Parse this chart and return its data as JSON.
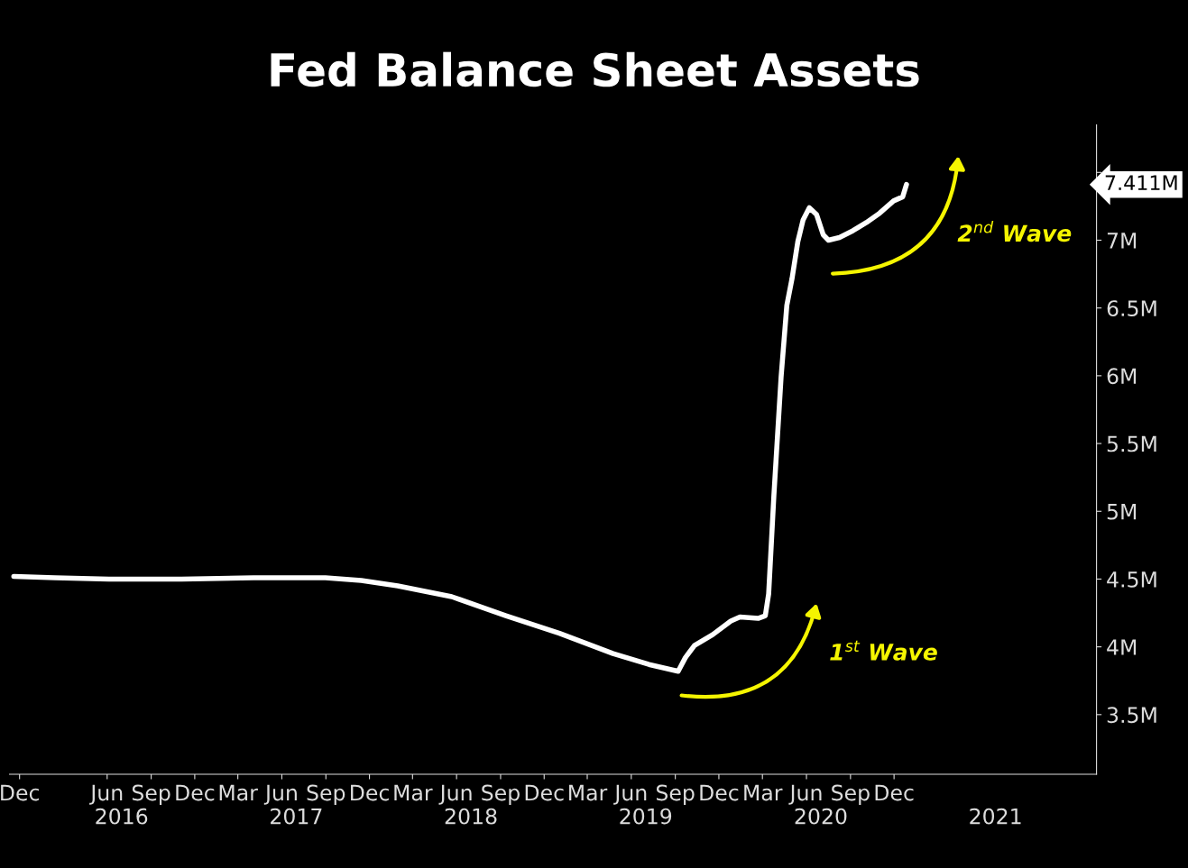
{
  "chart_data": {
    "type": "line",
    "title": "Fed Balance Sheet Assets",
    "x": [
      "2015-11-19",
      "2016-02-13",
      "2016-06-05",
      "2016-11-03",
      "2017-04-03",
      "2017-08-31",
      "2017-11-14",
      "2018-01-29",
      "2018-05-22",
      "2018-09-12",
      "2019-01-02",
      "2019-04-24",
      "2019-07-08",
      "2019-09-07",
      "2019-09-22",
      "2019-10-11",
      "2019-11-18",
      "2019-12-26",
      "2020-01-14",
      "2020-02-21",
      "2020-03-07",
      "2020-03-14",
      "2020-03-25",
      "2020-04-09",
      "2020-04-21",
      "2020-05-02",
      "2020-05-14",
      "2020-05-25",
      "2020-06-07",
      "2020-06-22",
      "2020-07-06",
      "2020-07-17",
      "2020-08-09",
      "2020-09-06",
      "2020-10-04",
      "2020-11-01",
      "2020-11-30",
      "2020-12-19",
      "2020-12-27"
    ],
    "series": [
      {
        "color": "#ffffff",
        "values": [
          4.52,
          4.51,
          4.5,
          4.5,
          4.51,
          4.51,
          4.49,
          4.45,
          4.37,
          4.23,
          4.1,
          3.95,
          3.87,
          3.82,
          3.92,
          4.01,
          4.09,
          4.19,
          4.22,
          4.21,
          4.23,
          4.39,
          5.12,
          5.99,
          6.52,
          6.72,
          6.99,
          7.15,
          7.24,
          7.19,
          7.04,
          7.0,
          7.02,
          7.07,
          7.13,
          7.2,
          7.29,
          7.32,
          7.411
        ]
      }
    ],
    "xlim": [
      "2015-11-10",
      "2022-01-28"
    ],
    "xticks": [
      {
        "value": "2015-12-01",
        "label": "Dec"
      },
      {
        "value": "2016-06-01",
        "label": "Jun"
      },
      {
        "value": "2016-09-01",
        "label": "Sep"
      },
      {
        "value": "2016-12-01",
        "label": "Dec"
      },
      {
        "value": "2017-03-01",
        "label": "Mar"
      },
      {
        "value": "2017-06-01",
        "label": "Jun"
      },
      {
        "value": "2017-09-01",
        "label": "Sep"
      },
      {
        "value": "2017-12-01",
        "label": "Dec"
      },
      {
        "value": "2018-03-01",
        "label": "Mar"
      },
      {
        "value": "2018-06-01",
        "label": "Jun"
      },
      {
        "value": "2018-09-01",
        "label": "Sep"
      },
      {
        "value": "2018-12-01",
        "label": "Dec"
      },
      {
        "value": "2019-03-01",
        "label": "Mar"
      },
      {
        "value": "2019-06-01",
        "label": "Jun"
      },
      {
        "value": "2019-09-01",
        "label": "Sep"
      },
      {
        "value": "2019-12-01",
        "label": "Dec"
      },
      {
        "value": "2020-03-01",
        "label": "Mar"
      },
      {
        "value": "2020-06-01",
        "label": "Jun"
      },
      {
        "value": "2020-09-01",
        "label": "Sep"
      },
      {
        "value": "2020-12-01",
        "label": "Dec"
      }
    ],
    "x2lim": [
      "2015-11-10",
      "2022-01-28"
    ],
    "x2ticks": [
      {
        "value": "2016-07-01",
        "label": "2016"
      },
      {
        "value": "2017-07-01",
        "label": "2017"
      },
      {
        "value": "2018-07-01",
        "label": "2018"
      },
      {
        "value": "2019-07-01",
        "label": "2019"
      },
      {
        "value": "2020-07-01",
        "label": "2020"
      },
      {
        "value": "2021-07-01",
        "label": "2021"
      }
    ],
    "ylim": [
      3.06,
      7.85
    ],
    "yticks": [
      {
        "value": 3.5,
        "label": "3.5M"
      },
      {
        "value": 4,
        "label": "4M"
      },
      {
        "value": 4.5,
        "label": "4.5M"
      },
      {
        "value": 5,
        "label": "5M"
      },
      {
        "value": 5.5,
        "label": "5.5M"
      },
      {
        "value": 6,
        "label": "6M"
      },
      {
        "value": 6.5,
        "label": "6.5M"
      },
      {
        "value": 7,
        "label": "7M"
      },
      {
        "value": 7.5,
        "label": null
      }
    ],
    "annotations": [
      "7.411M",
      "1$^{st}$ Wave",
      "2$^{nd}$ Wave"
    ],
    "grid": false,
    "legend": false
  }
}
